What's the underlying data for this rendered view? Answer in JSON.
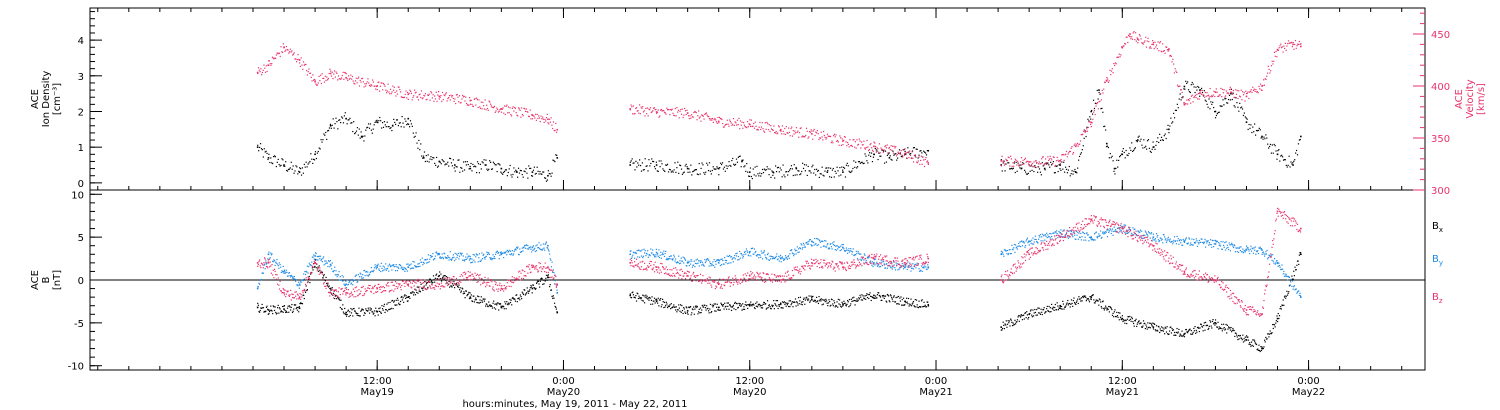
{
  "colors": {
    "black": "#000000",
    "pink": "#e8336b",
    "blue": "#1f8be6"
  },
  "chart_data": [
    {
      "type": "scatter",
      "panel": "top",
      "ylabel_left": [
        "ACE",
        "Ion Density",
        "[cm⁻³]"
      ],
      "ylabel_right": [
        "ACE",
        "Velocity",
        "[km/s]"
      ],
      "ylim_left": [
        -0.2,
        4.9
      ],
      "ylim_right": [
        300,
        475
      ],
      "yticks_left": [
        "0",
        "1",
        "2",
        "3",
        "4"
      ],
      "yticks_right": [
        "300",
        "350",
        "400",
        "450"
      ],
      "series": [
        {
          "axis": "left",
          "color": "black",
          "x": [
            4.3,
            5.0,
            6.0,
            7.0,
            8.0,
            9.0,
            10.0,
            11.0,
            12.0,
            13.0,
            14.0,
            15.0,
            16.0,
            17.0,
            18.0,
            19.0,
            20.0,
            21.0,
            22.0,
            23.0,
            23.6,
            28.3,
            30.0,
            32.0,
            34.0,
            35.5,
            36.0,
            37.5,
            39.0,
            41.0,
            42.0,
            44.0,
            45.0,
            46.0,
            47.5,
            52.2,
            53.5,
            55.0,
            56.0,
            57.0,
            58.0,
            58.5,
            59.0,
            59.5,
            60.0,
            61.0,
            62.0,
            63.0,
            64.0,
            65.0,
            66.0,
            67.0,
            68.0,
            69.0,
            70.0,
            71.0,
            71.5
          ],
          "y": [
            1.0,
            0.7,
            0.5,
            0.3,
            0.8,
            1.6,
            1.8,
            1.3,
            1.7,
            1.6,
            1.8,
            0.7,
            0.6,
            0.5,
            0.4,
            0.5,
            0.4,
            0.3,
            0.3,
            0.2,
            0.7,
            0.5,
            0.5,
            0.4,
            0.4,
            0.6,
            0.3,
            0.3,
            0.4,
            0.3,
            0.3,
            0.8,
            0.7,
            0.8,
            0.9,
            0.5,
            0.4,
            0.4,
            0.5,
            0.3,
            2.0,
            2.6,
            1.1,
            0.4,
            0.8,
            1.2,
            1.0,
            1.5,
            2.7,
            2.6,
            2.0,
            2.5,
            1.7,
            1.3,
            0.8,
            0.5,
            1.3
          ]
        },
        {
          "axis": "right",
          "color": "pink",
          "x": [
            4.3,
            5.0,
            6.0,
            7.0,
            8.0,
            9.0,
            10.0,
            12.0,
            14.0,
            16.0,
            18.0,
            20.0,
            22.0,
            23.0,
            23.6,
            28.3,
            30.0,
            32.0,
            34.0,
            36.0,
            38.0,
            40.0,
            42.0,
            44.0,
            46.0,
            47.5,
            52.2,
            54.0,
            56.0,
            57.0,
            58.0,
            59.0,
            60.0,
            60.5,
            61.0,
            62.0,
            63.0,
            64.0,
            65.0,
            66.0,
            67.0,
            68.0,
            69.0,
            70.0,
            71.0,
            71.5
          ],
          "y": [
            413,
            420,
            437,
            425,
            404,
            412,
            408,
            400,
            392,
            390,
            386,
            378,
            372,
            368,
            358,
            378,
            375,
            374,
            366,
            363,
            358,
            354,
            347,
            342,
            335,
            326,
            328,
            327,
            328,
            342,
            365,
            405,
            437,
            450,
            445,
            440,
            435,
            382,
            393,
            394,
            394,
            390,
            400,
            435,
            440,
            438
          ]
        }
      ]
    },
    {
      "type": "scatter",
      "panel": "bottom",
      "ylabel_left": [
        "ACE",
        "B",
        "[nT]"
      ],
      "ylim": [
        -10.5,
        10.5
      ],
      "yticks": [
        "-10",
        "-5",
        "0",
        "5",
        "10"
      ],
      "legend": [
        "Bx",
        "By",
        "Bz"
      ],
      "legend_placement": "right",
      "series": [
        {
          "name": "Bx",
          "color": "black",
          "x": [
            4.3,
            5.0,
            6.0,
            7.0,
            8.0,
            9.0,
            10.0,
            12.0,
            14.0,
            16.0,
            18.0,
            20.0,
            22.0,
            23.0,
            23.6,
            28.3,
            30.0,
            32.0,
            34.0,
            36.0,
            38.0,
            40.0,
            42.0,
            44.0,
            46.0,
            47.5,
            52.2,
            54.0,
            56.0,
            58.0,
            60.0,
            62.0,
            64.0,
            66.0,
            68.0,
            69.0,
            70.0,
            71.5
          ],
          "y": [
            -3.2,
            -3.5,
            -3.4,
            -3.3,
            2.0,
            -1.0,
            -3.8,
            -3.7,
            -2.0,
            0.5,
            -2.0,
            -3.2,
            -1.0,
            0.3,
            -3.8,
            -1.8,
            -2.5,
            -3.6,
            -3.2,
            -3.0,
            -2.8,
            -2.3,
            -2.8,
            -1.8,
            -2.5,
            -2.9,
            -5.5,
            -4.0,
            -3.0,
            -2.0,
            -4.5,
            -5.5,
            -6.3,
            -5.0,
            -7.0,
            -8.0,
            -4.5,
            3.0
          ]
        },
        {
          "name": "By",
          "color": "blue",
          "x": [
            4.3,
            5.0,
            6.0,
            7.0,
            8.0,
            9.0,
            10.0,
            12.0,
            14.0,
            16.0,
            18.0,
            20.0,
            22.0,
            23.0,
            23.6,
            28.3,
            30.0,
            32.0,
            34.0,
            36.0,
            38.0,
            40.0,
            42.0,
            44.0,
            46.0,
            47.5,
            52.2,
            54.0,
            56.0,
            58.0,
            60.0,
            62.0,
            64.0,
            66.0,
            68.0,
            69.0,
            70.0,
            71.5
          ],
          "y": [
            -1.0,
            3.0,
            1.0,
            -0.5,
            2.8,
            1.8,
            -0.5,
            1.5,
            1.5,
            3.0,
            2.5,
            3.0,
            3.8,
            4.0,
            -1.5,
            3.0,
            3.2,
            2.0,
            2.0,
            3.3,
            2.5,
            4.5,
            3.8,
            2.0,
            1.5,
            1.5,
            3.0,
            4.5,
            5.5,
            5.0,
            6.0,
            5.0,
            4.5,
            4.2,
            3.5,
            3.5,
            2.0,
            -2.0
          ]
        },
        {
          "name": "Bz",
          "color": "pink",
          "x": [
            4.3,
            5.0,
            6.0,
            7.0,
            8.0,
            9.0,
            10.0,
            12.0,
            14.0,
            16.0,
            18.0,
            20.0,
            22.0,
            23.0,
            23.6,
            28.3,
            30.0,
            32.0,
            34.0,
            36.0,
            38.0,
            40.0,
            42.0,
            44.0,
            46.0,
            47.5,
            52.2,
            54.0,
            56.0,
            58.0,
            60.0,
            62.0,
            64.0,
            66.0,
            68.0,
            69.0,
            70.0,
            71.5
          ],
          "y": [
            2.0,
            2.0,
            -1.5,
            -2.0,
            2.0,
            -1.5,
            -1.5,
            -1.0,
            -0.5,
            -0.5,
            0.5,
            -1.0,
            1.5,
            1.5,
            -0.5,
            2.0,
            1.5,
            0.5,
            -0.5,
            0.5,
            0.0,
            2.0,
            1.5,
            2.5,
            2.0,
            2.5,
            0.0,
            3.0,
            5.0,
            7.0,
            6.0,
            4.0,
            1.0,
            0.0,
            -3.5,
            -4.0,
            8.0,
            6.0
          ]
        }
      ]
    }
  ],
  "xaxis": {
    "range_hours": [
      -6.5,
      79.5
    ],
    "ticks": [
      {
        "h": 12,
        "line1": "12:00",
        "line2": "May19"
      },
      {
        "h": 24,
        "line1": "0:00",
        "line2": "May20"
      },
      {
        "h": 36,
        "line1": "12:00",
        "line2": "May20"
      },
      {
        "h": 48,
        "line1": "0:00",
        "line2": "May21"
      },
      {
        "h": 60,
        "line1": "12:00",
        "line2": "May21"
      },
      {
        "h": 72,
        "line1": "0:00",
        "line2": "May22"
      }
    ],
    "title": "hours:minutes, May 19, 2011 - May 22, 2011"
  },
  "legend_labels": {
    "bx": {
      "main": "B",
      "sub": "x"
    },
    "by": {
      "main": "B",
      "sub": "y"
    },
    "bz": {
      "main": "B",
      "sub": "z"
    }
  }
}
